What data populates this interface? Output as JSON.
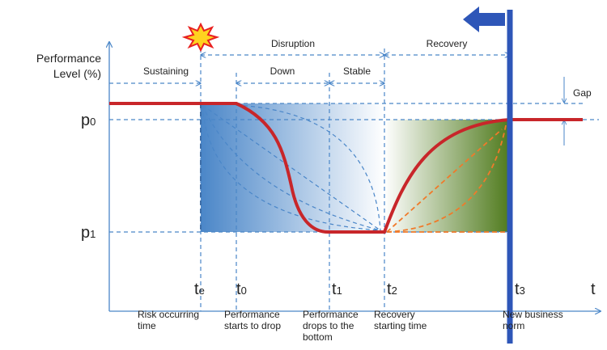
{
  "y_axis_label": [
    "Performance",
    "Level (%)"
  ],
  "phases": {
    "sustaining": "Sustaining",
    "disruption": "Disruption",
    "down": "Down",
    "stable": "Stable",
    "recovery": "Recovery"
  },
  "gap": "Gap",
  "levels": [
    {
      "main": "p",
      "sub": "0"
    },
    {
      "main": "p",
      "sub": "1"
    }
  ],
  "times": [
    {
      "main": "t",
      "sub": "e"
    },
    {
      "main": "t",
      "sub": "0"
    },
    {
      "main": "t",
      "sub": "1"
    },
    {
      "main": "t",
      "sub": "2"
    },
    {
      "main": "t",
      "sub": "3"
    }
  ],
  "x_axis_label": "t",
  "captions": [
    [
      "Risk occurring",
      "time"
    ],
    [
      "Performance",
      "starts to drop"
    ],
    [
      "Performance",
      "drops to the",
      "bottom"
    ],
    [
      "Recovery",
      "starting time"
    ],
    [
      "New business",
      "norm"
    ]
  ]
}
